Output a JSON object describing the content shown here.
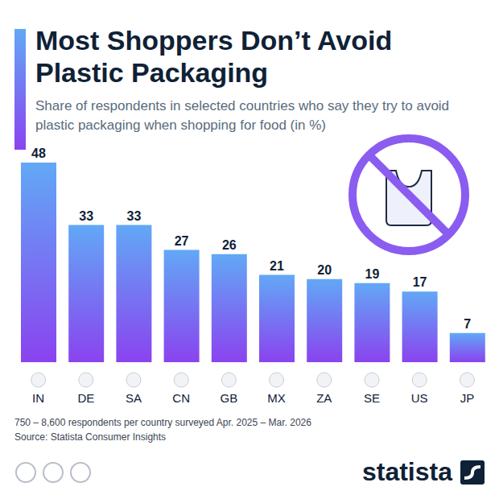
{
  "chart_data": {
    "type": "bar",
    "title": "Most Shoppers Don’t Avoid Plastic Packaging",
    "subtitle": "Share of respondents in selected countries who say they try to avoid plastic packaging when shopping for food (in %)",
    "categories": [
      "IN",
      "DE",
      "SA",
      "CN",
      "GB",
      "MX",
      "ZA",
      "SE",
      "US",
      "JP"
    ],
    "values": [
      48,
      33,
      33,
      27,
      26,
      21,
      20,
      19,
      17,
      7
    ],
    "color": "#8a43ef",
    "data_labels": true,
    "tick_labels": "x",
    "grid": false,
    "note": "750 – 8,600 respondents per country surveyed Apr. 2025 – Mar. 2026",
    "source": "Source: Statista Consumer Insights",
    "logo": "statista"
  }
}
